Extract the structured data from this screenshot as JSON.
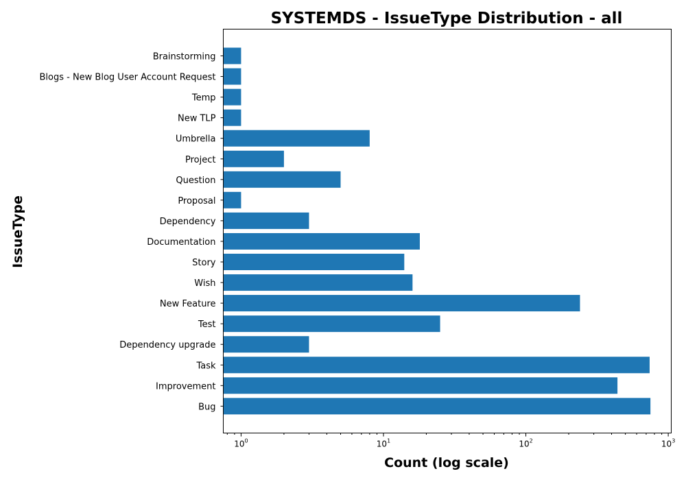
{
  "chart_data": {
    "type": "bar",
    "orientation": "horizontal",
    "title": "SYSTEMDS - IssueType Distribution - all",
    "xlabel": "Count (log scale)",
    "ylabel": "IssueType",
    "xscale": "log",
    "xlim": [
      0.75,
      1050
    ],
    "grid": false,
    "bar_color": "#1f77b4",
    "categories": [
      "Brainstorming",
      "Blogs - New Blog User Account Request",
      "Temp",
      "New TLP ",
      "Umbrella",
      "Project",
      "Question",
      "Proposal",
      "Dependency",
      "Documentation",
      "Story",
      "Wish",
      "New Feature",
      "Test",
      "Dependency upgrade",
      "Task",
      "Improvement",
      "Bug"
    ],
    "values": [
      1,
      1,
      1,
      1,
      8,
      2,
      5,
      1,
      3,
      18,
      14,
      16,
      240,
      25,
      3,
      740,
      440,
      750
    ],
    "xticks": [
      {
        "base": "10",
        "exp": "0",
        "value": 1
      },
      {
        "base": "10",
        "exp": "1",
        "value": 10
      },
      {
        "base": "10",
        "exp": "2",
        "value": 100
      },
      {
        "base": "10",
        "exp": "3",
        "value": 1000
      }
    ]
  }
}
